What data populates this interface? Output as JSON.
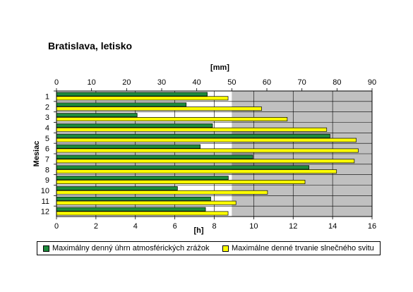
{
  "chart_data": {
    "type": "bar",
    "orientation": "horizontal",
    "title": "Bratislava, letisko",
    "ylabel": "Mesiac",
    "categories": [
      "1",
      "2",
      "3",
      "4",
      "5",
      "6",
      "7",
      "8",
      "9",
      "10",
      "11",
      "12"
    ],
    "x_top": {
      "label": "[mm]",
      "lim": [
        0,
        90
      ],
      "ticks": [
        0,
        10,
        20,
        30,
        40,
        50,
        60,
        70,
        80,
        90
      ]
    },
    "x_bottom": {
      "label": "[h]",
      "lim": [
        0,
        16
      ],
      "ticks": [
        0,
        2,
        4,
        6,
        8,
        10,
        12,
        14,
        16
      ]
    },
    "grid": true,
    "legend_position": "bottom",
    "series": [
      {
        "name": "Maximálny denný úhrn atmosférických zrážok",
        "axis": "top",
        "color": "#1e8a3c",
        "values": [
          43,
          37,
          23,
          44.5,
          78,
          41,
          56,
          72,
          49,
          34.5,
          44,
          42.5
        ]
      },
      {
        "name": "Maximálne denné trvanie slnečného svitu",
        "axis": "bottom",
        "color": "#ffff00",
        "values": [
          8.7,
          10.4,
          11.7,
          13.7,
          15.2,
          15.3,
          15.1,
          14.2,
          12.6,
          10.7,
          9.1,
          8.7
        ]
      }
    ],
    "colors": {
      "plot_left_bg": "#ffffff",
      "plot_right_bg": "#c0c0c0"
    }
  }
}
